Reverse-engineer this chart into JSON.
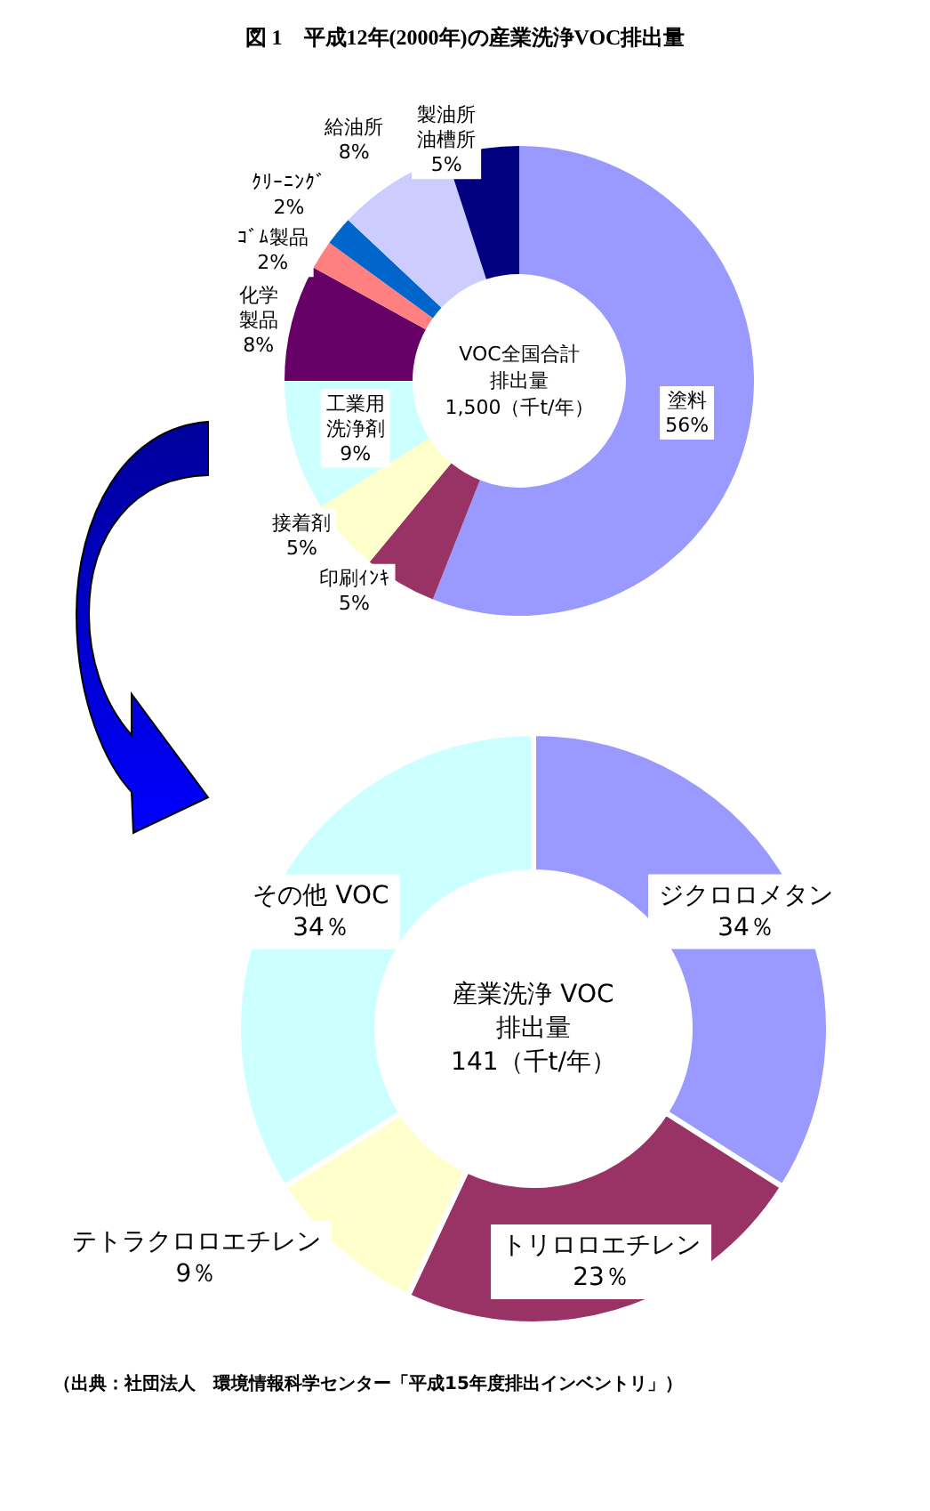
{
  "chart_data": [
    {
      "type": "donut",
      "title": "図 1　平成12年(2000年)の産業洗浄VOC排出量",
      "categories": [
        "塗料",
        "印刷ｲﾝｷ",
        "接着剤",
        "工業用洗浄剤",
        "化学製品",
        "ｺﾞﾑ製品",
        "ｸﾘｰﾆﾝｸﾞ",
        "給油所",
        "製油所油槽所"
      ],
      "values": [
        56,
        5,
        5,
        9,
        8,
        2,
        2,
        8,
        5
      ],
      "value_labels": [
        "56%",
        "5%",
        "5%",
        "9%",
        "8%",
        "2%",
        "2%",
        "8%",
        "5%"
      ],
      "colors": [
        "#9999ff",
        "#993366",
        "#ffffcc",
        "#ccffff",
        "#660066",
        "#ff8080",
        "#0066cc",
        "#ccccff",
        "#000080"
      ],
      "annotations": [
        "VOC全国合計排出量\n1,500（千t/年）"
      ]
    },
    {
      "type": "donut",
      "categories": [
        "ジクロロメタン",
        "トリロロエチレン",
        "テトラクロロエチレン",
        "その他 VOC"
      ],
      "values": [
        34,
        23,
        9,
        34
      ],
      "value_labels": [
        "34％",
        "23％",
        "9％",
        "34％"
      ],
      "colors": [
        "#9999ff",
        "#993366",
        "#ffffcc",
        "#ccffff"
      ],
      "annotations": [
        "産業洗浄 VOC\n排出量\n141（千t/年）",
        "（出典：社団法人　環境情報科学センター「平成15年度排出インベントリ」）"
      ]
    }
  ]
}
